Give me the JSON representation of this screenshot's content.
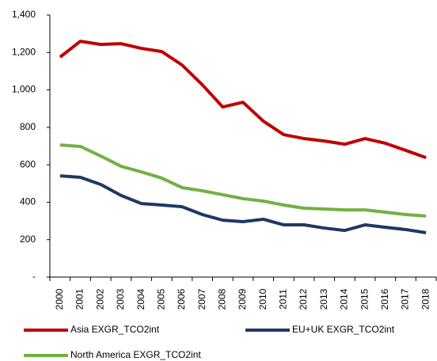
{
  "chart_data": {
    "type": "line",
    "categories": [
      "2000",
      "2001",
      "2002",
      "2003",
      "2004",
      "2005",
      "2006",
      "2007",
      "2008",
      "2009",
      "2010",
      "2011",
      "2012",
      "2013",
      "2014",
      "2015",
      "2016",
      "2017",
      "2018"
    ],
    "series": [
      {
        "name": "Asia EXGR_TCO2int",
        "color": "#c00000",
        "values": [
          1175,
          1260,
          1243,
          1247,
          1222,
          1205,
          1133,
          1027,
          909,
          934,
          833,
          761,
          740,
          727,
          710,
          740,
          715,
          677,
          638
        ]
      },
      {
        "name": "EU+UK EXGR_TCO2int",
        "color": "#1f3864",
        "values": [
          541,
          533,
          495,
          436,
          393,
          385,
          376,
          334,
          304,
          296,
          309,
          279,
          279,
          262,
          249,
          279,
          266,
          254,
          237
        ]
      },
      {
        "name": "North America EXGR_TCO2int",
        "color": "#72b043",
        "values": [
          706,
          698,
          647,
          592,
          562,
          529,
          478,
          461,
          440,
          419,
          406,
          385,
          368,
          364,
          359,
          359,
          347,
          334,
          326
        ]
      }
    ],
    "ylim": [
      0,
      1400
    ],
    "yticks": [
      {
        "value": 0,
        "label": "-"
      },
      200,
      400,
      600,
      800,
      {
        "value": 1000,
        "label": "1,000"
      },
      {
        "value": 1200,
        "label": "1,200"
      },
      {
        "value": 1400,
        "label": "1,400"
      }
    ],
    "grid": false
  }
}
